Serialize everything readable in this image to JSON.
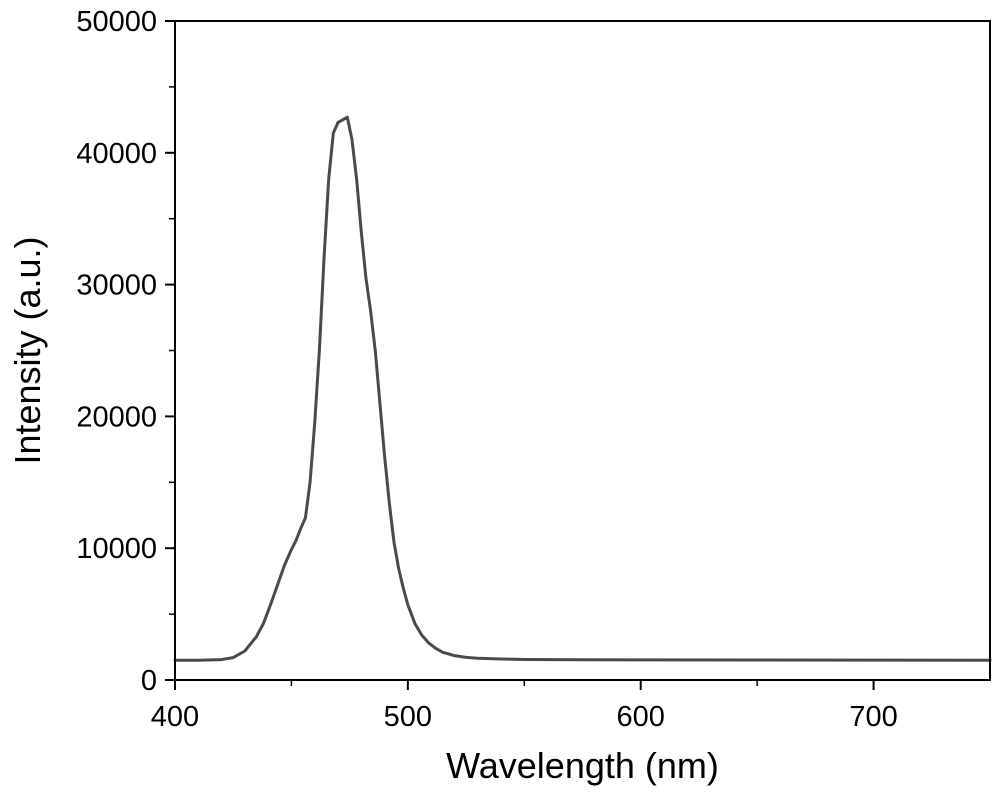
{
  "chart_data": {
    "type": "line",
    "title": "",
    "xlabel": "Wavelength (nm)",
    "ylabel": "Intensity (a.u.)",
    "xlim": [
      400,
      750
    ],
    "ylim": [
      0,
      50000
    ],
    "x_ticks": [
      400,
      500,
      600,
      700
    ],
    "y_ticks": [
      0,
      10000,
      20000,
      30000,
      40000,
      50000
    ],
    "x_tick_labels": [
      "400",
      "500",
      "600",
      "700"
    ],
    "y_tick_labels": [
      "0",
      "10000",
      "20000",
      "30000",
      "40000",
      "50000"
    ],
    "minor_ticks": true,
    "grid": false,
    "legend": "none",
    "line_color": "#4a4a4a",
    "series": [
      {
        "x": [
          400,
          410,
          420,
          425,
          430,
          435,
          438,
          441,
          444,
          447,
          450,
          452,
          454,
          456,
          458,
          460,
          462,
          464,
          466,
          468,
          470,
          472,
          474,
          476,
          478,
          480,
          482,
          484,
          486,
          488,
          490,
          492,
          494,
          496,
          498,
          500,
          503,
          506,
          509,
          512,
          515,
          520,
          525,
          530,
          540,
          550,
          575,
          600,
          650,
          700,
          750
        ],
        "y": [
          1500,
          1500,
          1550,
          1700,
          2200,
          3300,
          4300,
          5700,
          7200,
          8700,
          9900,
          10600,
          11500,
          12300,
          15000,
          19500,
          25000,
          32000,
          38000,
          41500,
          42300,
          42500,
          42700,
          41000,
          38000,
          34000,
          30500,
          28000,
          25000,
          21000,
          17000,
          13500,
          10500,
          8500,
          7000,
          5700,
          4300,
          3400,
          2800,
          2400,
          2100,
          1850,
          1720,
          1650,
          1590,
          1560,
          1540,
          1530,
          1520,
          1510,
          1500
        ]
      }
    ]
  }
}
